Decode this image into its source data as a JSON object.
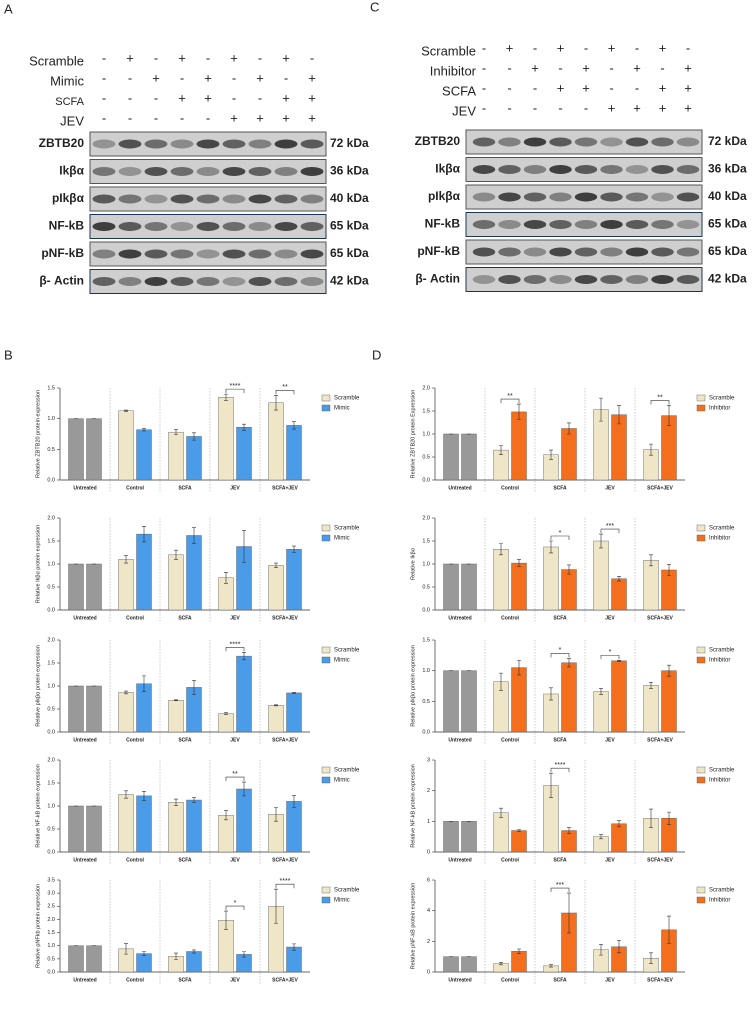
{
  "panel_labels": [
    "A",
    "B",
    "C",
    "D"
  ],
  "blots": [
    {
      "treatments": [
        {
          "name": "Scramble",
          "signs": [
            "-",
            "+",
            "-",
            "+",
            "-",
            "+",
            "-",
            "+",
            "-"
          ]
        },
        {
          "name": "Mimic",
          "signs": [
            "-",
            "-",
            "+",
            "-",
            "+",
            "-",
            "+",
            "-",
            "+"
          ]
        },
        {
          "name": "SCFA",
          "signs": [
            "-",
            "-",
            "-",
            "+",
            "+",
            "-",
            "-",
            "+",
            "+"
          ]
        },
        {
          "name": "JEV",
          "signs": [
            "-",
            "-",
            "-",
            "-",
            "-",
            "+",
            "+",
            "+",
            "+"
          ]
        }
      ],
      "proteins": [
        {
          "name": "ZBTB20",
          "size": "72 kDa"
        },
        {
          "name": "Ikβα",
          "size": "36 kDa"
        },
        {
          "name": "pIkβα",
          "size": "40 kDa"
        },
        {
          "name": "NF-kB",
          "size": "65 kDa"
        },
        {
          "name": "pNF-kB",
          "size": "65 kDa"
        },
        {
          "name": "β- Actin",
          "size": "42 kDa"
        }
      ]
    },
    {
      "treatments": [
        {
          "name": "Scramble",
          "signs": [
            "-",
            "+",
            "-",
            "+",
            "-",
            "+",
            "-",
            "+",
            "-"
          ]
        },
        {
          "name": "Inhibitor",
          "signs": [
            "-",
            "-",
            "+",
            "-",
            "+",
            "-",
            "+",
            "-",
            "+"
          ]
        },
        {
          "name": "SCFA",
          "signs": [
            "-",
            "-",
            "-",
            "+",
            "+",
            "-",
            "-",
            "+",
            "+"
          ]
        },
        {
          "name": "JEV",
          "signs": [
            "-",
            "-",
            "-",
            "-",
            "-",
            "+",
            "+",
            "+",
            "+"
          ]
        }
      ],
      "proteins": [
        {
          "name": "ZBTB20",
          "size": "72 kDa"
        },
        {
          "name": "Ikβα",
          "size": "36 kDa"
        },
        {
          "name": "pIkβα",
          "size": "40 kDa"
        },
        {
          "name": "NF-kB",
          "size": "65 kDa"
        },
        {
          "name": "pNF-kB",
          "size": "65 kDa"
        },
        {
          "name": "β- Actin",
          "size": "42 kDa"
        }
      ]
    }
  ],
  "chart_data": [
    {
      "type": "bar",
      "ylabel": "Relative ZBTB20 protein expression",
      "categories": [
        "Untreated",
        "Control",
        "SCFA",
        "JEV",
        "SCFA+JEV"
      ],
      "baseline_color": "#999999",
      "series": [
        {
          "name": "Scramble",
          "color": "#efe6c8",
          "values": [
            1,
            1.13,
            0.78,
            1.35,
            1.26
          ],
          "errors": [
            0,
            0.01,
            0.04,
            0.05,
            0.12
          ]
        },
        {
          "name": "Mimic",
          "color": "#4a9be8",
          "values": [
            1,
            0.82,
            0.71,
            0.86,
            0.89
          ],
          "errors": [
            0,
            0.02,
            0.06,
            0.05,
            0.06
          ]
        }
      ],
      "ylim": [
        0,
        1.5
      ],
      "yticks": [
        {
          "value": 0,
          "label": "0.0"
        },
        0.5,
        {
          "value": 1,
          "label": "1.0"
        },
        1.5
      ],
      "significance": [
        {
          "category": "JEV",
          "label": "****"
        },
        {
          "category": "SCFA+JEV",
          "label": "**"
        }
      ]
    },
    {
      "type": "bar",
      "ylabel": "Relative Ikβα protein expression",
      "categories": [
        "Untreated",
        "Control",
        "SCFA",
        "JEV",
        "SCFA+JEV"
      ],
      "baseline_color": "#999999",
      "series": [
        {
          "name": "Scramble",
          "color": "#efe6c8",
          "values": [
            1,
            1.1,
            1.2,
            0.7,
            0.97
          ],
          "errors": [
            0,
            0.08,
            0.1,
            0.12,
            0.05
          ]
        },
        {
          "name": "Mimic",
          "color": "#4a9be8",
          "values": [
            1,
            1.65,
            1.62,
            1.38,
            1.32
          ],
          "errors": [
            0,
            0.17,
            0.17,
            0.35,
            0.07
          ]
        }
      ],
      "ylim": [
        0,
        2
      ],
      "yticks": [
        {
          "value": 0,
          "label": "0.0"
        },
        0.5,
        {
          "value": 1,
          "label": "1.0"
        },
        1.5,
        {
          "value": 2,
          "label": "2.0"
        }
      ],
      "significance": []
    },
    {
      "type": "bar",
      "ylabel": "Relative pIkβα protein expression",
      "categories": [
        "Untreated",
        "Control",
        "SCFA",
        "JEV",
        "SCFA+JEV"
      ],
      "baseline_color": "#999999",
      "series": [
        {
          "name": "Scramble",
          "color": "#efe6c8",
          "values": [
            1,
            0.86,
            0.69,
            0.4,
            0.58
          ],
          "errors": [
            0,
            0.03,
            0.01,
            0.02,
            0.01
          ]
        },
        {
          "name": "Mimic",
          "color": "#4a9be8",
          "values": [
            1,
            1.05,
            0.97,
            1.65,
            0.85
          ],
          "errors": [
            0,
            0.17,
            0.15,
            0.08,
            0.01
          ]
        }
      ],
      "ylim": [
        0,
        2
      ],
      "yticks": [
        {
          "value": 0,
          "label": "0.0"
        },
        0.5,
        {
          "value": 1,
          "label": "1.0"
        },
        1.5,
        {
          "value": 2,
          "label": "2.0"
        }
      ],
      "significance": [
        {
          "category": "JEV",
          "label": "****"
        }
      ]
    },
    {
      "type": "bar",
      "ylabel": "Relative NF-kB protein expression",
      "categories": [
        "Untreated",
        "Control",
        "SCFA",
        "JEV",
        "SCFA+JEV"
      ],
      "baseline_color": "#999999",
      "series": [
        {
          "name": "Scramble",
          "color": "#efe6c8",
          "values": [
            1,
            1.25,
            1.08,
            0.8,
            0.82
          ],
          "errors": [
            0,
            0.08,
            0.07,
            0.1,
            0.15
          ]
        },
        {
          "name": "Mimic",
          "color": "#4a9be8",
          "values": [
            1,
            1.22,
            1.13,
            1.37,
            1.1
          ],
          "errors": [
            0,
            0.1,
            0.05,
            0.15,
            0.13
          ]
        }
      ],
      "ylim": [
        0,
        2
      ],
      "yticks": [
        {
          "value": 0,
          "label": "0.0"
        },
        0.5,
        {
          "value": 1,
          "label": "1.0"
        },
        1.5,
        {
          "value": 2,
          "label": "2.0"
        }
      ],
      "significance": [
        {
          "category": "JEV",
          "label": "**"
        }
      ]
    },
    {
      "type": "bar",
      "ylabel": "Relative pNFkb protein expression",
      "categories": [
        "Untreated",
        "Control",
        "SCFA",
        "JEV",
        "SCFA+JEV"
      ],
      "baseline_color": "#999999",
      "series": [
        {
          "name": "Scramble",
          "color": "#efe6c8",
          "values": [
            1,
            0.88,
            0.6,
            1.97,
            2.5
          ],
          "errors": [
            0,
            0.2,
            0.12,
            0.35,
            0.65
          ]
        },
        {
          "name": "Mimic",
          "color": "#4a9be8",
          "values": [
            1,
            0.7,
            0.78,
            0.67,
            0.95
          ],
          "errors": [
            0,
            0.08,
            0.06,
            0.1,
            0.12
          ]
        }
      ],
      "ylim": [
        0,
        3.5
      ],
      "yticks": [
        {
          "value": 0,
          "label": "0.0"
        },
        0.5,
        {
          "value": 1,
          "label": "1.0"
        },
        1.5,
        {
          "value": 2,
          "label": "2.0"
        },
        2.5,
        {
          "value": 3,
          "label": "3.0"
        },
        3.5
      ],
      "significance": [
        {
          "category": "JEV",
          "label": "*"
        },
        {
          "category": "SCFA+JEV",
          "label": "****"
        }
      ]
    },
    {
      "type": "bar",
      "ylabel": "Relative ZBTB20 protein Expression",
      "categories": [
        "Untreated",
        "Control",
        "SCFA",
        "JEV",
        "SCFA+JEV"
      ],
      "baseline_color": "#999999",
      "series": [
        {
          "name": "Scramble",
          "color": "#efe6c8",
          "values": [
            1,
            0.65,
            0.55,
            1.53,
            0.66
          ],
          "errors": [
            0,
            0.1,
            0.1,
            0.25,
            0.12
          ]
        },
        {
          "name": "Inhibitor",
          "color": "#f36f1e",
          "values": [
            1,
            1.48,
            1.12,
            1.42,
            1.4
          ],
          "errors": [
            0,
            0.17,
            0.12,
            0.2,
            0.22
          ]
        }
      ],
      "ylim": [
        0,
        2
      ],
      "yticks": [
        {
          "value": 0,
          "label": "0.0"
        },
        0.5,
        {
          "value": 1,
          "label": "1.0"
        },
        1.5,
        {
          "value": 2,
          "label": "2.0"
        }
      ],
      "significance": [
        {
          "category": "Control",
          "label": "**"
        },
        {
          "category": "SCFA+JEV",
          "label": "**"
        }
      ]
    },
    {
      "type": "bar",
      "ylabel": "Relative Ikβα",
      "categories": [
        "Untreated",
        "Control",
        "SCFA",
        "JEV",
        "SCFA+JEV"
      ],
      "baseline_color": "#999999",
      "series": [
        {
          "name": "Scramble",
          "color": "#efe6c8",
          "values": [
            1,
            1.32,
            1.37,
            1.5,
            1.08
          ],
          "errors": [
            0,
            0.12,
            0.13,
            0.15,
            0.12
          ]
        },
        {
          "name": "Inhibitor",
          "color": "#f36f1e",
          "values": [
            1,
            1.02,
            0.88,
            0.68,
            0.87
          ],
          "errors": [
            0,
            0.08,
            0.1,
            0.05,
            0.12
          ]
        }
      ],
      "ylim": [
        0,
        2
      ],
      "yticks": [
        {
          "value": 0,
          "label": "0.0"
        },
        0.5,
        {
          "value": 1,
          "label": "1.0"
        },
        1.5,
        {
          "value": 2,
          "label": "2.0"
        }
      ],
      "significance": [
        {
          "category": "SCFA",
          "label": "*"
        },
        {
          "category": "JEV",
          "label": "***"
        }
      ]
    },
    {
      "type": "bar",
      "ylabel": "Relative pIkβα protein expression",
      "categories": [
        "Untreated",
        "Control",
        "SCFA",
        "JEV",
        "SCFA+JEV"
      ],
      "baseline_color": "#999999",
      "series": [
        {
          "name": "Scramble",
          "color": "#efe6c8",
          "values": [
            1,
            0.82,
            0.62,
            0.66,
            0.76
          ],
          "errors": [
            0,
            0.14,
            0.1,
            0.05,
            0.05
          ]
        },
        {
          "name": "Inhibitor",
          "color": "#f36f1e",
          "values": [
            1,
            1.05,
            1.13,
            1.16,
            1.0
          ],
          "errors": [
            0,
            0.12,
            0.07,
            0.01,
            0.09
          ]
        }
      ],
      "ylim": [
        0,
        1.5
      ],
      "yticks": [
        {
          "value": 0,
          "label": "0.0"
        },
        0.5,
        {
          "value": 1,
          "label": "1.0"
        },
        1.5
      ],
      "significance": [
        {
          "category": "SCFA",
          "label": "*"
        },
        {
          "category": "JEV",
          "label": "*"
        }
      ]
    },
    {
      "type": "bar",
      "ylabel": "Relative NF-kB protein expression",
      "categories": [
        "Untreated",
        "Control",
        "SCFA",
        "JEV",
        "SCFA+JEV"
      ],
      "baseline_color": "#999999",
      "series": [
        {
          "name": "Scramble",
          "color": "#efe6c8",
          "values": [
            1,
            1.28,
            2.17,
            0.5,
            1.1
          ],
          "errors": [
            0,
            0.15,
            0.4,
            0.07,
            0.3
          ]
        },
        {
          "name": "Inhibitor",
          "color": "#f36f1e",
          "values": [
            1,
            0.7,
            0.7,
            0.92,
            1.1
          ],
          "errors": [
            0,
            0.03,
            0.1,
            0.1,
            0.2
          ]
        }
      ],
      "ylim": [
        0,
        3
      ],
      "yticks": [
        0,
        1,
        2,
        3
      ],
      "significance": [
        {
          "category": "SCFA",
          "label": "****"
        }
      ]
    },
    {
      "type": "bar",
      "ylabel": "Relative pNF-kB protein expression",
      "categories": [
        "Untreated",
        "Control",
        "SCFA",
        "JEV",
        "SCFA+JEV"
      ],
      "baseline_color": "#999999",
      "series": [
        {
          "name": "Scramble",
          "color": "#efe6c8",
          "values": [
            1,
            0.55,
            0.4,
            1.45,
            0.9
          ],
          "errors": [
            0,
            0.08,
            0.08,
            0.35,
            0.35
          ]
        },
        {
          "name": "Inhibitor",
          "color": "#f36f1e",
          "values": [
            1,
            1.35,
            3.85,
            1.65,
            2.75
          ],
          "errors": [
            0,
            0.15,
            1.3,
            0.4,
            0.9
          ]
        }
      ],
      "ylim": [
        0,
        6
      ],
      "yticks": [
        0,
        2,
        4,
        6
      ],
      "significance": [
        {
          "category": "SCFA",
          "label": "***"
        }
      ]
    }
  ]
}
